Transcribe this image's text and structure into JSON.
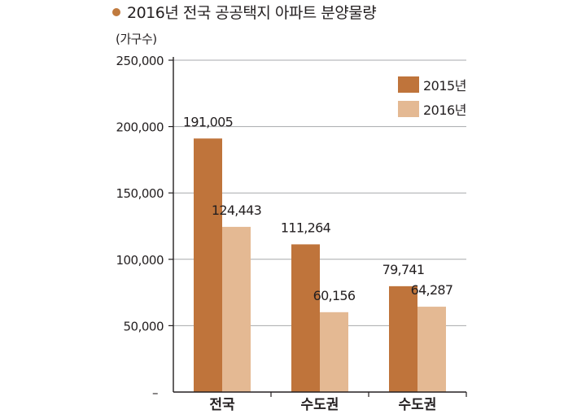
{
  "title": "2016년 전국 공공택지 아파트 분양물량",
  "chart_data": {
    "type": "bar",
    "title": "2016년 전국 공공택지 아파트 분양물량",
    "ylabel": "(가구수)",
    "xlabel": "",
    "ylim": [
      0,
      250000
    ],
    "yticks": [
      {
        "value": 250000,
        "label": "250,000"
      },
      {
        "value": 200000,
        "label": "200,000"
      },
      {
        "value": 150000,
        "label": "150,000"
      },
      {
        "value": 100000,
        "label": "100,000"
      },
      {
        "value": 50000,
        "label": "50,000"
      },
      {
        "value": 0,
        "label": "–"
      }
    ],
    "categories": [
      "전국",
      "수도권",
      "수도권"
    ],
    "series": [
      {
        "name": "2015년",
        "color": "#bf743b",
        "values": [
          191005,
          111264,
          79741
        ],
        "labels": [
          "191,005",
          "111,264",
          "79,741"
        ]
      },
      {
        "name": "2016년",
        "color": "#e4b993",
        "values": [
          124443,
          60156,
          64287
        ],
        "labels": [
          "124,443",
          "60,156",
          "64,287"
        ]
      }
    ],
    "grid": true,
    "legend": "top-right"
  },
  "colors": {
    "dot": "#c07a3e",
    "grid": "#a7a9ac",
    "axis": "#231f20"
  }
}
